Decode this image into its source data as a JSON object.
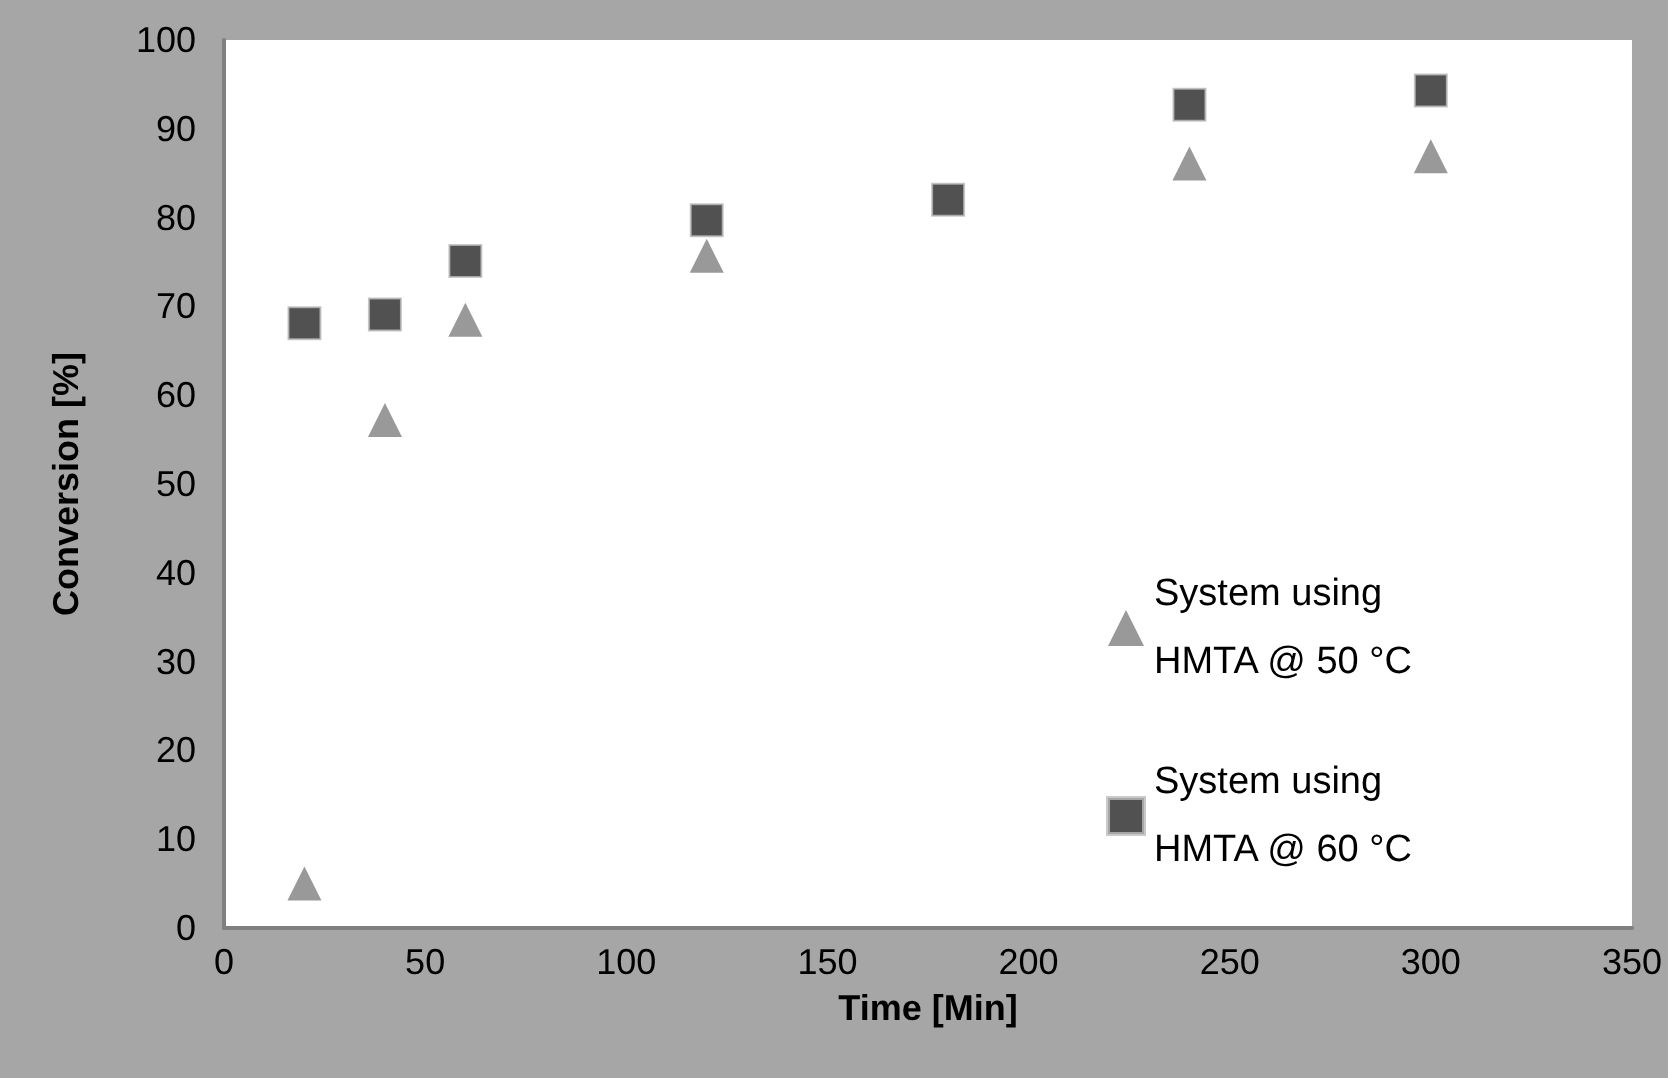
{
  "chart_data": {
    "type": "scatter",
    "xlabel": "Time [Min]",
    "ylabel": "Conversion [%]",
    "x": [
      20,
      40,
      60,
      120,
      180,
      240,
      300
    ],
    "series": [
      {
        "name": "System using HMTA @ 50 °C",
        "color": "#7f7f7f",
        "marker": "triangle",
        "values": [
          5,
          57.2,
          68.5,
          75.7,
          null,
          86.1,
          86.9
        ]
      },
      {
        "name": "System using HMTA @ 60 °C",
        "color": "#262626",
        "marker": "square",
        "values": [
          68.1,
          69.1,
          75.1,
          79.7,
          82,
          92.7,
          94.3
        ]
      }
    ],
    "xlim": [
      0,
      350
    ],
    "xticks": [
      0,
      50,
      100,
      150,
      200,
      250,
      300,
      350
    ],
    "ylim": [
      0,
      100
    ],
    "yticks": [
      0,
      10,
      20,
      30,
      40,
      50,
      60,
      70,
      80,
      90,
      100
    ],
    "grid": false,
    "legend": "right"
  }
}
